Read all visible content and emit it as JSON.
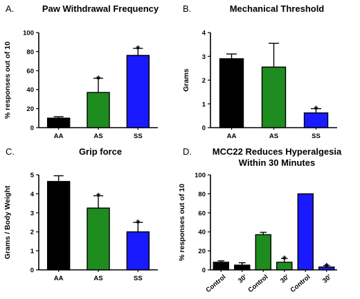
{
  "chart_data": [
    {
      "type": "bar",
      "panel": "A.",
      "title": "Paw Withdrawal Frequency",
      "ylabel": "% responses out of 10",
      "categories": [
        "AA",
        "AS",
        "SS"
      ],
      "values": [
        10,
        37,
        76
      ],
      "errors": [
        1.5,
        15,
        7.5
      ],
      "significant": [
        false,
        true,
        true
      ],
      "colors": [
        "#000000",
        "#1e8c1e",
        "#1a1aff"
      ],
      "ylim": [
        0,
        100
      ],
      "yticks": [
        0,
        20,
        40,
        60,
        80,
        100
      ],
      "significance_marker": "*",
      "grid": false
    },
    {
      "type": "bar",
      "panel": "B.",
      "title": "Mechanical Threshold",
      "ylabel": "Grams",
      "categories": [
        "AA",
        "AS",
        "SS"
      ],
      "values": [
        2.9,
        2.55,
        0.62
      ],
      "errors": [
        0.2,
        1.0,
        0.18
      ],
      "significant": [
        false,
        false,
        true
      ],
      "colors": [
        "#000000",
        "#1e8c1e",
        "#1a1aff"
      ],
      "ylim": [
        0,
        4
      ],
      "yticks": [
        0,
        1,
        2,
        3,
        4
      ],
      "significance_marker": "*",
      "grid": false
    },
    {
      "type": "bar",
      "panel": "C.",
      "title": "Grip force",
      "ylabel": "Grams / Body Weight",
      "categories": [
        "AA",
        "AS",
        "SS"
      ],
      "values": [
        4.65,
        3.25,
        2.0
      ],
      "errors": [
        0.3,
        0.65,
        0.5
      ],
      "significant": [
        false,
        true,
        true
      ],
      "colors": [
        "#000000",
        "#1e8c1e",
        "#1a1aff"
      ],
      "ylim": [
        0,
        5
      ],
      "yticks": [
        0,
        1,
        2,
        3,
        4,
        5
      ],
      "significance_marker": "*",
      "grid": false
    },
    {
      "type": "bar",
      "panel": "D.",
      "title": "MCC22 Reduces Hyperalgesia",
      "subtitle": "Within 30 Minutes",
      "ylabel": "% responses out of 10",
      "categories": [
        "Control",
        "30'",
        "Control",
        "30'",
        "Control",
        "30'"
      ],
      "values": [
        8,
        5,
        37,
        8,
        80,
        3
      ],
      "errors": [
        1.5,
        2.5,
        2.5,
        4,
        0,
        1.5
      ],
      "significant": [
        false,
        false,
        false,
        true,
        false,
        true
      ],
      "colors": [
        "#000000",
        "#000000",
        "#1e8c1e",
        "#1e8c1e",
        "#1a1aff",
        "#1a1aff"
      ],
      "ylim": [
        0,
        100
      ],
      "yticks": [
        0,
        20,
        40,
        60,
        80,
        100
      ],
      "significance_marker": "*",
      "grid": false
    }
  ]
}
